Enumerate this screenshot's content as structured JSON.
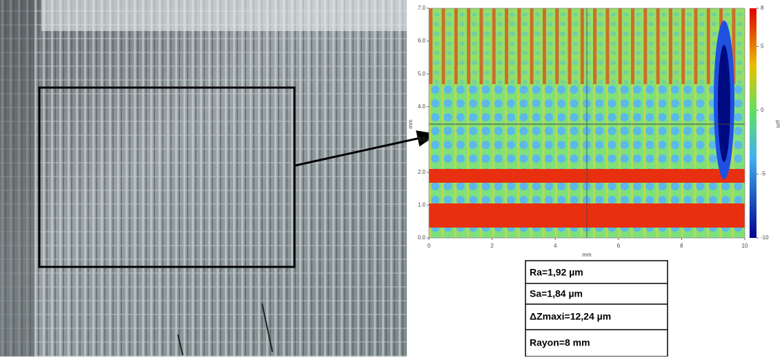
{
  "surface_map": {
    "xlabel": "mm",
    "ylabel": "mm",
    "xlim": [
      0,
      10
    ],
    "ylim": [
      0,
      7
    ],
    "xticks": [
      0,
      2,
      4,
      6,
      8,
      10
    ],
    "yticks": [
      {
        "value": 0,
        "label": "0.0"
      },
      {
        "value": 1,
        "label": "1.0"
      },
      {
        "value": 2,
        "label": "2.0"
      },
      {
        "value": 3,
        "label": "3.0"
      },
      {
        "value": 4,
        "label": "4.0"
      },
      {
        "value": 5,
        "label": "5.0"
      },
      {
        "value": 6,
        "label": "6.0"
      },
      {
        "value": 7,
        "label": "7.0"
      }
    ],
    "colorbar": {
      "label": "µm",
      "lim": [
        -10,
        8
      ],
      "ticks": [
        8,
        5,
        0,
        -5,
        -10
      ]
    }
  },
  "table": {
    "rows": [
      "Ra=1,92 µm",
      "Sa=1,84 µm",
      "ΔZmaxi=12,24 µm",
      "Rayon=8 mm"
    ]
  }
}
